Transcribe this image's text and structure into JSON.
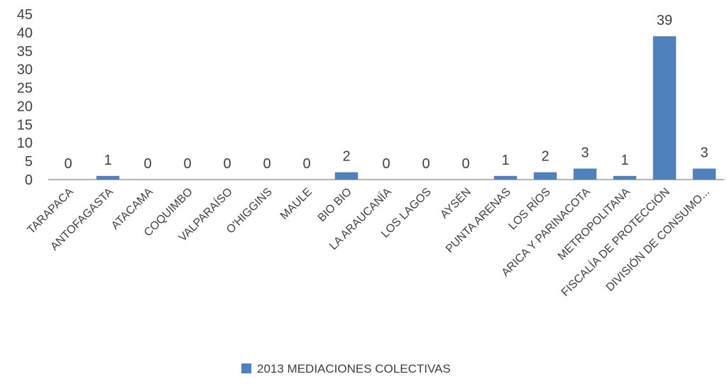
{
  "chart_data": {
    "type": "bar",
    "title": "",
    "xlabel": "",
    "ylabel": "",
    "ylim": [
      0,
      45
    ],
    "yticks": [
      0,
      5,
      10,
      15,
      20,
      25,
      30,
      35,
      40,
      45
    ],
    "grid": false,
    "legend_position": "bottom",
    "categories": [
      "TARAPACA",
      "ANTOFAGASTA",
      "ATACAMA",
      "COQUIMBO",
      "VALPARAÍSO",
      "O'HIGGINS",
      "MAULE",
      "BIO BIO",
      "LA ARAUCANÍA",
      "LOS LAGOS",
      "AYSÉN",
      "PUNTA ARENAS",
      "LOS RÍOS",
      "ARICA Y PARINACOTA",
      "METROPOLITANA",
      "FISCALÍA DE PROTECCIÓN",
      "DIVISIÓN DE CONSUMO..."
    ],
    "series": [
      {
        "name": "2013 MEDIACIONES COLECTIVAS",
        "color": "#4f81bd",
        "values": [
          0,
          1,
          0,
          0,
          0,
          0,
          0,
          2,
          0,
          0,
          0,
          1,
          2,
          3,
          1,
          39,
          3
        ]
      }
    ]
  }
}
